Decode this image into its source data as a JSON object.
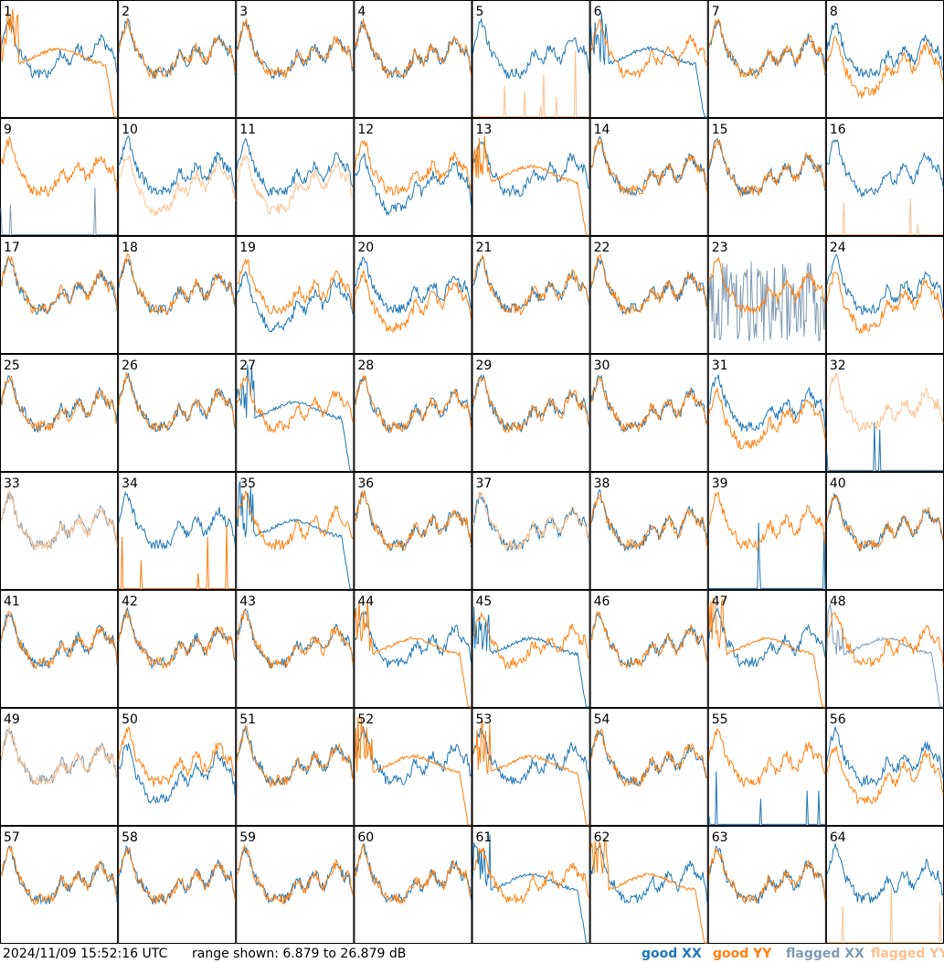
{
  "footer": {
    "timestamp": "2024/11/09 15:52:16 UTC",
    "range_text": "range shown: 6.879 to 26.879 dB"
  },
  "legend": [
    {
      "label": "good XX",
      "color": "#1f77b4"
    },
    {
      "label": "good YY",
      "color": "#ff7f0e"
    },
    {
      "label": "flagged XX",
      "color": "#7f9bb5"
    },
    {
      "label": "flagged YY",
      "color": "#fcc08f"
    }
  ],
  "chart_data": {
    "type": "line",
    "layout": "grid 8 x 8 small multiples",
    "ylim": [
      6.879,
      26.879
    ],
    "yunit": "dB",
    "panels": [
      {
        "id": "1",
        "xx": "ok",
        "yy": "fall",
        "xx_flag": false,
        "yy_flag": false
      },
      {
        "id": "2",
        "xx": "ok",
        "yy": "ok",
        "xx_flag": false,
        "yy_flag": false
      },
      {
        "id": "3",
        "xx": "ok",
        "yy": "ok",
        "xx_flag": false,
        "yy_flag": false
      },
      {
        "id": "4",
        "xx": "ok",
        "yy": "ok",
        "xx_flag": false,
        "yy_flag": false
      },
      {
        "id": "5",
        "xx": "ok",
        "yy": "dead",
        "xx_flag": false,
        "yy_flag": true
      },
      {
        "id": "6",
        "xx": "fall",
        "yy": "ok",
        "xx_flag": false,
        "yy_flag": false
      },
      {
        "id": "7",
        "xx": "ok",
        "yy": "ok",
        "xx_flag": false,
        "yy_flag": false
      },
      {
        "id": "8",
        "xx": "ok",
        "yy": "low",
        "xx_flag": false,
        "yy_flag": false
      },
      {
        "id": "9",
        "xx": "dead",
        "yy": "ok",
        "xx_flag": true,
        "yy_flag": false
      },
      {
        "id": "10",
        "xx": "ok",
        "yy": "low",
        "xx_flag": false,
        "yy_flag": true
      },
      {
        "id": "11",
        "xx": "ok",
        "yy": "low",
        "xx_flag": false,
        "yy_flag": true
      },
      {
        "id": "12",
        "xx": "low",
        "yy": "ok",
        "xx_flag": false,
        "yy_flag": false
      },
      {
        "id": "13",
        "xx": "ok",
        "yy": "fall",
        "xx_flag": false,
        "yy_flag": false
      },
      {
        "id": "14",
        "xx": "ok",
        "yy": "ok",
        "xx_flag": false,
        "yy_flag": false
      },
      {
        "id": "15",
        "xx": "ok",
        "yy": "ok",
        "xx_flag": false,
        "yy_flag": false
      },
      {
        "id": "16",
        "xx": "ok",
        "yy": "dead",
        "xx_flag": false,
        "yy_flag": true
      },
      {
        "id": "17",
        "xx": "ok",
        "yy": "ok",
        "xx_flag": false,
        "yy_flag": false
      },
      {
        "id": "18",
        "xx": "ok",
        "yy": "ok",
        "xx_flag": false,
        "yy_flag": false
      },
      {
        "id": "19",
        "xx": "low",
        "yy": "ok",
        "xx_flag": false,
        "yy_flag": false
      },
      {
        "id": "20",
        "xx": "ok",
        "yy": "low",
        "xx_flag": false,
        "yy_flag": false
      },
      {
        "id": "21",
        "xx": "ok",
        "yy": "ok",
        "xx_flag": false,
        "yy_flag": false
      },
      {
        "id": "22",
        "xx": "ok",
        "yy": "ok",
        "xx_flag": false,
        "yy_flag": false
      },
      {
        "id": "23",
        "xx": "noise",
        "yy": "ok",
        "xx_flag": true,
        "yy_flag": false
      },
      {
        "id": "24",
        "xx": "ok",
        "yy": "low",
        "xx_flag": false,
        "yy_flag": false
      },
      {
        "id": "25",
        "xx": "ok",
        "yy": "ok",
        "xx_flag": false,
        "yy_flag": false
      },
      {
        "id": "26",
        "xx": "ok",
        "yy": "ok",
        "xx_flag": false,
        "yy_flag": false
      },
      {
        "id": "27",
        "xx": "fall",
        "yy": "ok",
        "xx_flag": false,
        "yy_flag": false
      },
      {
        "id": "28",
        "xx": "ok",
        "yy": "ok",
        "xx_flag": false,
        "yy_flag": false
      },
      {
        "id": "29",
        "xx": "ok",
        "yy": "ok",
        "xx_flag": false,
        "yy_flag": false
      },
      {
        "id": "30",
        "xx": "ok",
        "yy": "ok",
        "xx_flag": false,
        "yy_flag": false
      },
      {
        "id": "31",
        "xx": "ok",
        "yy": "low",
        "xx_flag": false,
        "yy_flag": false
      },
      {
        "id": "32",
        "xx": "dead",
        "yy": "ok",
        "xx_flag": false,
        "yy_flag": true
      },
      {
        "id": "33",
        "xx": "ok",
        "yy": "ok",
        "xx_flag": true,
        "yy_flag": true
      },
      {
        "id": "34",
        "xx": "ok",
        "yy": "dead",
        "xx_flag": false,
        "yy_flag": false
      },
      {
        "id": "35",
        "xx": "fall",
        "yy": "ok",
        "xx_flag": false,
        "yy_flag": false
      },
      {
        "id": "36",
        "xx": "ok",
        "yy": "ok",
        "xx_flag": false,
        "yy_flag": false
      },
      {
        "id": "37",
        "xx": "ok",
        "yy": "ok",
        "xx_flag": false,
        "yy_flag": true
      },
      {
        "id": "38",
        "xx": "ok",
        "yy": "ok",
        "xx_flag": false,
        "yy_flag": false
      },
      {
        "id": "39",
        "xx": "dead",
        "yy": "ok",
        "xx_flag": false,
        "yy_flag": false
      },
      {
        "id": "40",
        "xx": "ok",
        "yy": "ok",
        "xx_flag": false,
        "yy_flag": false
      },
      {
        "id": "41",
        "xx": "ok",
        "yy": "ok",
        "xx_flag": false,
        "yy_flag": false
      },
      {
        "id": "42",
        "xx": "ok",
        "yy": "ok",
        "xx_flag": false,
        "yy_flag": false
      },
      {
        "id": "43",
        "xx": "ok",
        "yy": "ok",
        "xx_flag": false,
        "yy_flag": false
      },
      {
        "id": "44",
        "xx": "ok",
        "yy": "fall",
        "xx_flag": false,
        "yy_flag": false
      },
      {
        "id": "45",
        "xx": "fall",
        "yy": "ok",
        "xx_flag": false,
        "yy_flag": false
      },
      {
        "id": "46",
        "xx": "ok",
        "yy": "ok",
        "xx_flag": false,
        "yy_flag": false
      },
      {
        "id": "47",
        "xx": "ok",
        "yy": "fall",
        "xx_flag": false,
        "yy_flag": false
      },
      {
        "id": "48",
        "xx": "fall",
        "yy": "ok",
        "xx_flag": true,
        "yy_flag": false
      },
      {
        "id": "49",
        "xx": "ok",
        "yy": "ok",
        "xx_flag": true,
        "yy_flag": true
      },
      {
        "id": "50",
        "xx": "low",
        "yy": "ok",
        "xx_flag": false,
        "yy_flag": false
      },
      {
        "id": "51",
        "xx": "ok",
        "yy": "ok",
        "xx_flag": false,
        "yy_flag": false
      },
      {
        "id": "52",
        "xx": "ok",
        "yy": "fall",
        "xx_flag": false,
        "yy_flag": false
      },
      {
        "id": "53",
        "xx": "ok",
        "yy": "fall",
        "xx_flag": false,
        "yy_flag": false
      },
      {
        "id": "54",
        "xx": "ok",
        "yy": "ok",
        "xx_flag": false,
        "yy_flag": false
      },
      {
        "id": "55",
        "xx": "dead",
        "yy": "ok",
        "xx_flag": false,
        "yy_flag": false
      },
      {
        "id": "56",
        "xx": "ok",
        "yy": "low",
        "xx_flag": false,
        "yy_flag": false
      },
      {
        "id": "57",
        "xx": "ok",
        "yy": "ok",
        "xx_flag": false,
        "yy_flag": false
      },
      {
        "id": "58",
        "xx": "ok",
        "yy": "ok",
        "xx_flag": false,
        "yy_flag": false
      },
      {
        "id": "59",
        "xx": "ok",
        "yy": "ok",
        "xx_flag": false,
        "yy_flag": false
      },
      {
        "id": "60",
        "xx": "ok",
        "yy": "ok",
        "xx_flag": false,
        "yy_flag": false
      },
      {
        "id": "61",
        "xx": "fall",
        "yy": "ok",
        "xx_flag": false,
        "yy_flag": false
      },
      {
        "id": "62",
        "xx": "ok",
        "yy": "fall",
        "xx_flag": false,
        "yy_flag": false
      },
      {
        "id": "63",
        "xx": "ok",
        "yy": "ok",
        "xx_flag": false,
        "yy_flag": false
      },
      {
        "id": "64",
        "xx": "ok",
        "yy": "dead",
        "xx_flag": false,
        "yy_flag": true
      }
    ]
  }
}
